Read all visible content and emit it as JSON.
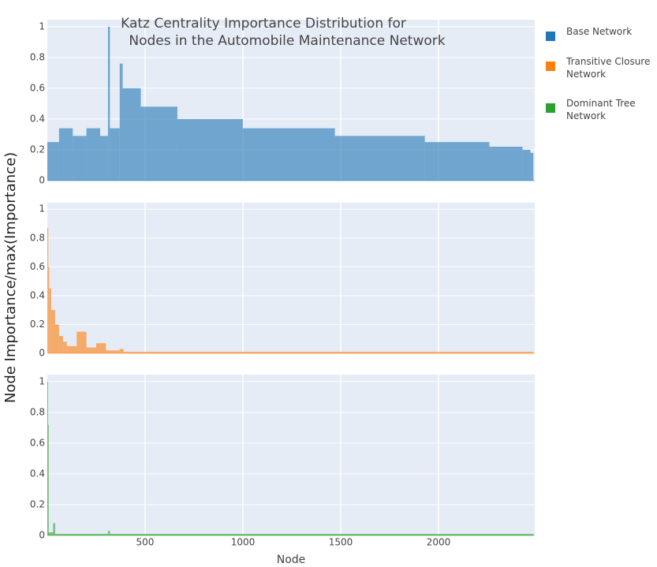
{
  "chart_data": [
    {
      "type": "histogram",
      "title": [
        "Katz Centrality Importance Distribution for",
        "Nodes in the Automobile Maintenance Network"
      ],
      "ylabel": "Node Importance/max(Importance)",
      "bins": [
        0,
        60,
        130,
        200,
        270,
        310,
        320,
        370,
        385,
        478,
        665,
        1000,
        1470,
        1930,
        2260,
        2430,
        2470,
        2485
      ],
      "series": [
        {
          "name": "Base Network",
          "color": "#1f77b4",
          "values": [
            0.25,
            0.34,
            0.29,
            0.34,
            0.29,
            1.0,
            0.34,
            0.76,
            0.6,
            0.48,
            0.4,
            0.34,
            0.29,
            0.25,
            0.22,
            0.2,
            0.18
          ]
        }
      ],
      "xlim": [
        0,
        2492
      ],
      "ylim": [
        0,
        1.045
      ],
      "yticks": [
        0,
        0.2,
        0.4,
        0.6,
        0.8,
        1
      ],
      "grid": true
    },
    {
      "type": "histogram",
      "bins": [
        0,
        5,
        10,
        20,
        40,
        60,
        80,
        100,
        150,
        200,
        250,
        300,
        370,
        390,
        2485
      ],
      "series": [
        {
          "name": "Transitive Closure Network",
          "color": "#ff7f0e",
          "values": [
            0.87,
            0.6,
            0.45,
            0.3,
            0.2,
            0.12,
            0.08,
            0.05,
            0.15,
            0.04,
            0.07,
            0.02,
            0.03,
            0.01
          ]
        }
      ],
      "xlim": [
        0,
        2492
      ],
      "ylim": [
        0,
        1.045
      ],
      "yticks": [
        0,
        0.2,
        0.4,
        0.6,
        0.8,
        1
      ],
      "grid": true
    },
    {
      "type": "histogram",
      "xlabel": "Node",
      "bins": [
        0,
        3,
        6,
        30,
        40,
        310,
        320,
        2485
      ],
      "series": [
        {
          "name": "Dominant Tree Network",
          "color": "#2ca02c",
          "values": [
            1.0,
            0.72,
            0.02,
            0.08,
            0.01,
            0.03,
            0.01
          ]
        }
      ],
      "xlim": [
        0,
        2492
      ],
      "xticks": [
        500,
        1000,
        1500,
        2000
      ],
      "ylim": [
        0,
        1.045
      ],
      "yticks": [
        0,
        0.2,
        0.4,
        0.6,
        0.8,
        1
      ],
      "grid": true
    }
  ]
}
